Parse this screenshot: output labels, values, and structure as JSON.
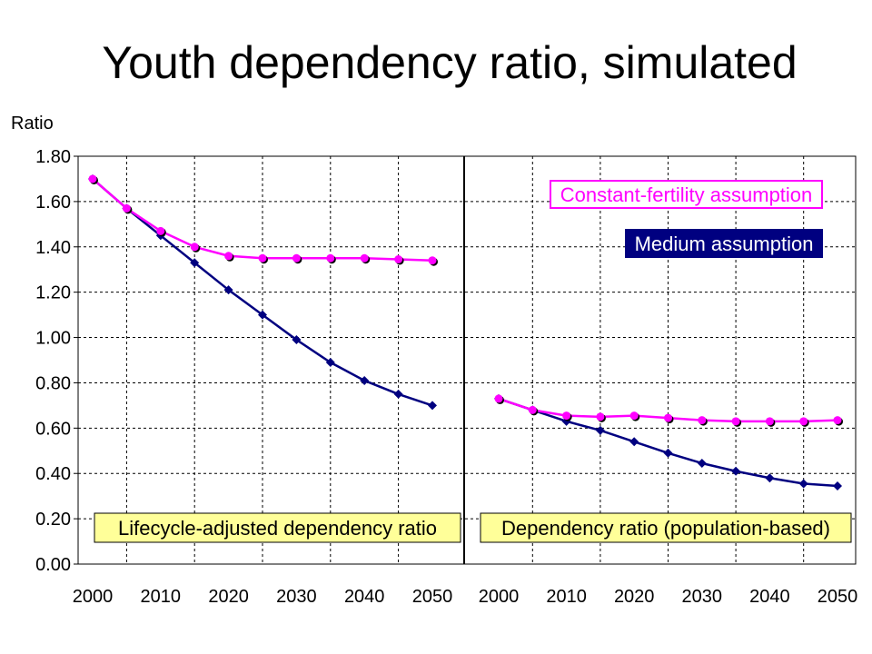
{
  "title": "Youth dependency ratio, simulated",
  "colors": {
    "constant": "#FF00FF",
    "medium": "#000080",
    "yellow_box": "#FFFF99",
    "grid": "#000000"
  },
  "chart_data": {
    "type": "line",
    "title": "Youth dependency ratio, simulated",
    "ylabel": "Ratio",
    "ylim": [
      0,
      1.8
    ],
    "yticks": [
      "0.00",
      "0.20",
      "0.40",
      "0.60",
      "0.80",
      "1.00",
      "1.20",
      "1.40",
      "1.60",
      "1.80"
    ],
    "xticks": [
      "2000",
      "2010",
      "2020",
      "2030",
      "2040",
      "2050"
    ],
    "grid": true,
    "legend": [
      {
        "name": "Constant-fertility assumption",
        "placement": "top-right"
      },
      {
        "name": "Medium assumption",
        "placement": "top-right"
      }
    ],
    "panels": [
      {
        "label": "Lifecycle-adjusted dependency ratio",
        "x": [
          2000,
          2005,
          2010,
          2015,
          2020,
          2025,
          2030,
          2035,
          2040,
          2045,
          2050
        ],
        "series": [
          {
            "name": "Constant-fertility assumption",
            "values": [
              1.7,
              1.57,
              1.47,
              1.4,
              1.36,
              1.35,
              1.35,
              1.35,
              1.35,
              1.345,
              1.34
            ]
          },
          {
            "name": "Medium assumption",
            "values": [
              1.7,
              1.57,
              1.45,
              1.33,
              1.21,
              1.1,
              0.99,
              0.89,
              0.81,
              0.75,
              0.7
            ]
          }
        ]
      },
      {
        "label": "Dependency ratio (population-based)",
        "x": [
          2000,
          2005,
          2010,
          2015,
          2020,
          2025,
          2030,
          2035,
          2040,
          2045,
          2050
        ],
        "series": [
          {
            "name": "Constant-fertility assumption",
            "values": [
              0.73,
              0.68,
              0.655,
              0.65,
              0.655,
              0.645,
              0.635,
              0.63,
              0.63,
              0.63,
              0.635
            ]
          },
          {
            "name": "Medium assumption",
            "values": [
              0.73,
              0.68,
              0.63,
              0.59,
              0.54,
              0.49,
              0.445,
              0.41,
              0.38,
              0.355,
              0.345
            ]
          }
        ]
      }
    ]
  }
}
